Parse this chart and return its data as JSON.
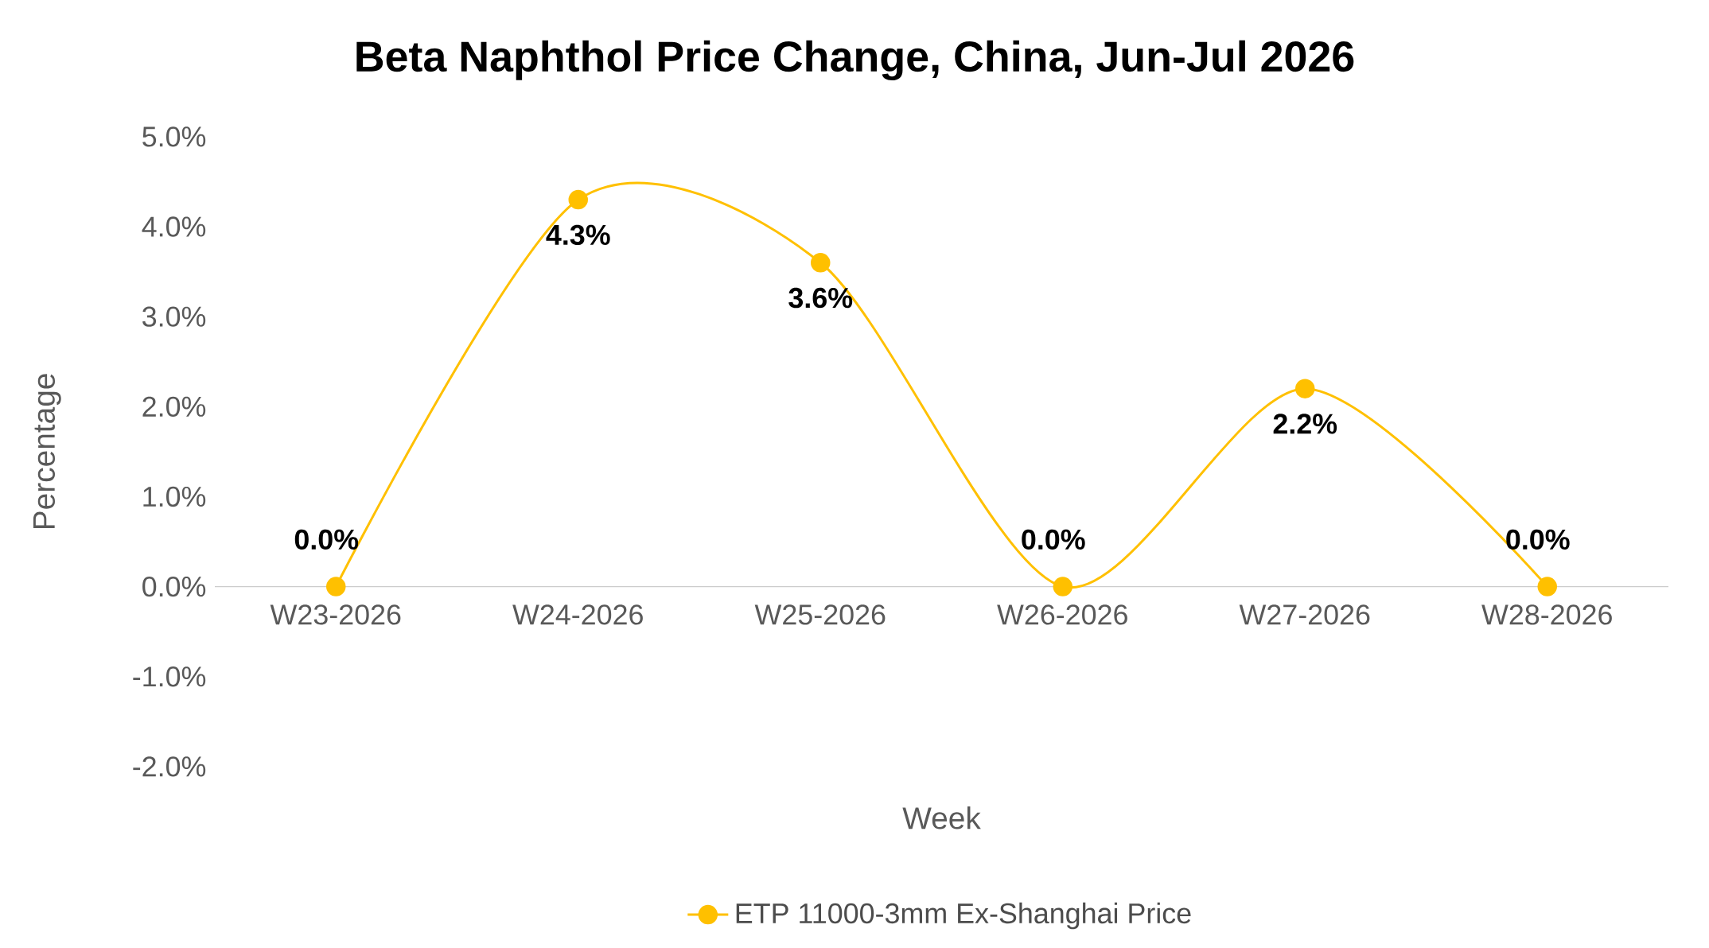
{
  "chart_data": {
    "type": "line",
    "title": "Beta Naphthol Price Change, China, Jun-Jul 2026",
    "xlabel": "Week",
    "ylabel": "Percentage",
    "categories": [
      "W23-2026",
      "W24-2026",
      "W25-2026",
      "W26-2026",
      "W27-2026",
      "W28-2026"
    ],
    "series": [
      {
        "name": "ETP 11000-3mm Ex-Shanghai Price",
        "color": "#ffc000",
        "values": [
          0.0,
          4.3,
          3.6,
          0.0,
          2.2,
          0.0
        ],
        "value_labels": [
          "0.0%",
          "4.3%",
          "3.6%",
          "0.0%",
          "2.2%",
          "0.0%"
        ]
      }
    ],
    "ylim": [
      -2,
      5
    ],
    "yticks": [
      {
        "value": -2,
        "label": "-2.0%"
      },
      {
        "value": -1,
        "label": "-1.0%"
      },
      {
        "value": 0,
        "label": "0.0%"
      },
      {
        "value": 1,
        "label": "1.0%"
      },
      {
        "value": 2,
        "label": "2.0%"
      },
      {
        "value": 3,
        "label": "3.0%"
      },
      {
        "value": 4,
        "label": "4.0%"
      },
      {
        "value": 5,
        "label": "5.0%"
      }
    ],
    "marker": "circle",
    "line_style": "solid",
    "legend": "bottom",
    "grid": false
  }
}
